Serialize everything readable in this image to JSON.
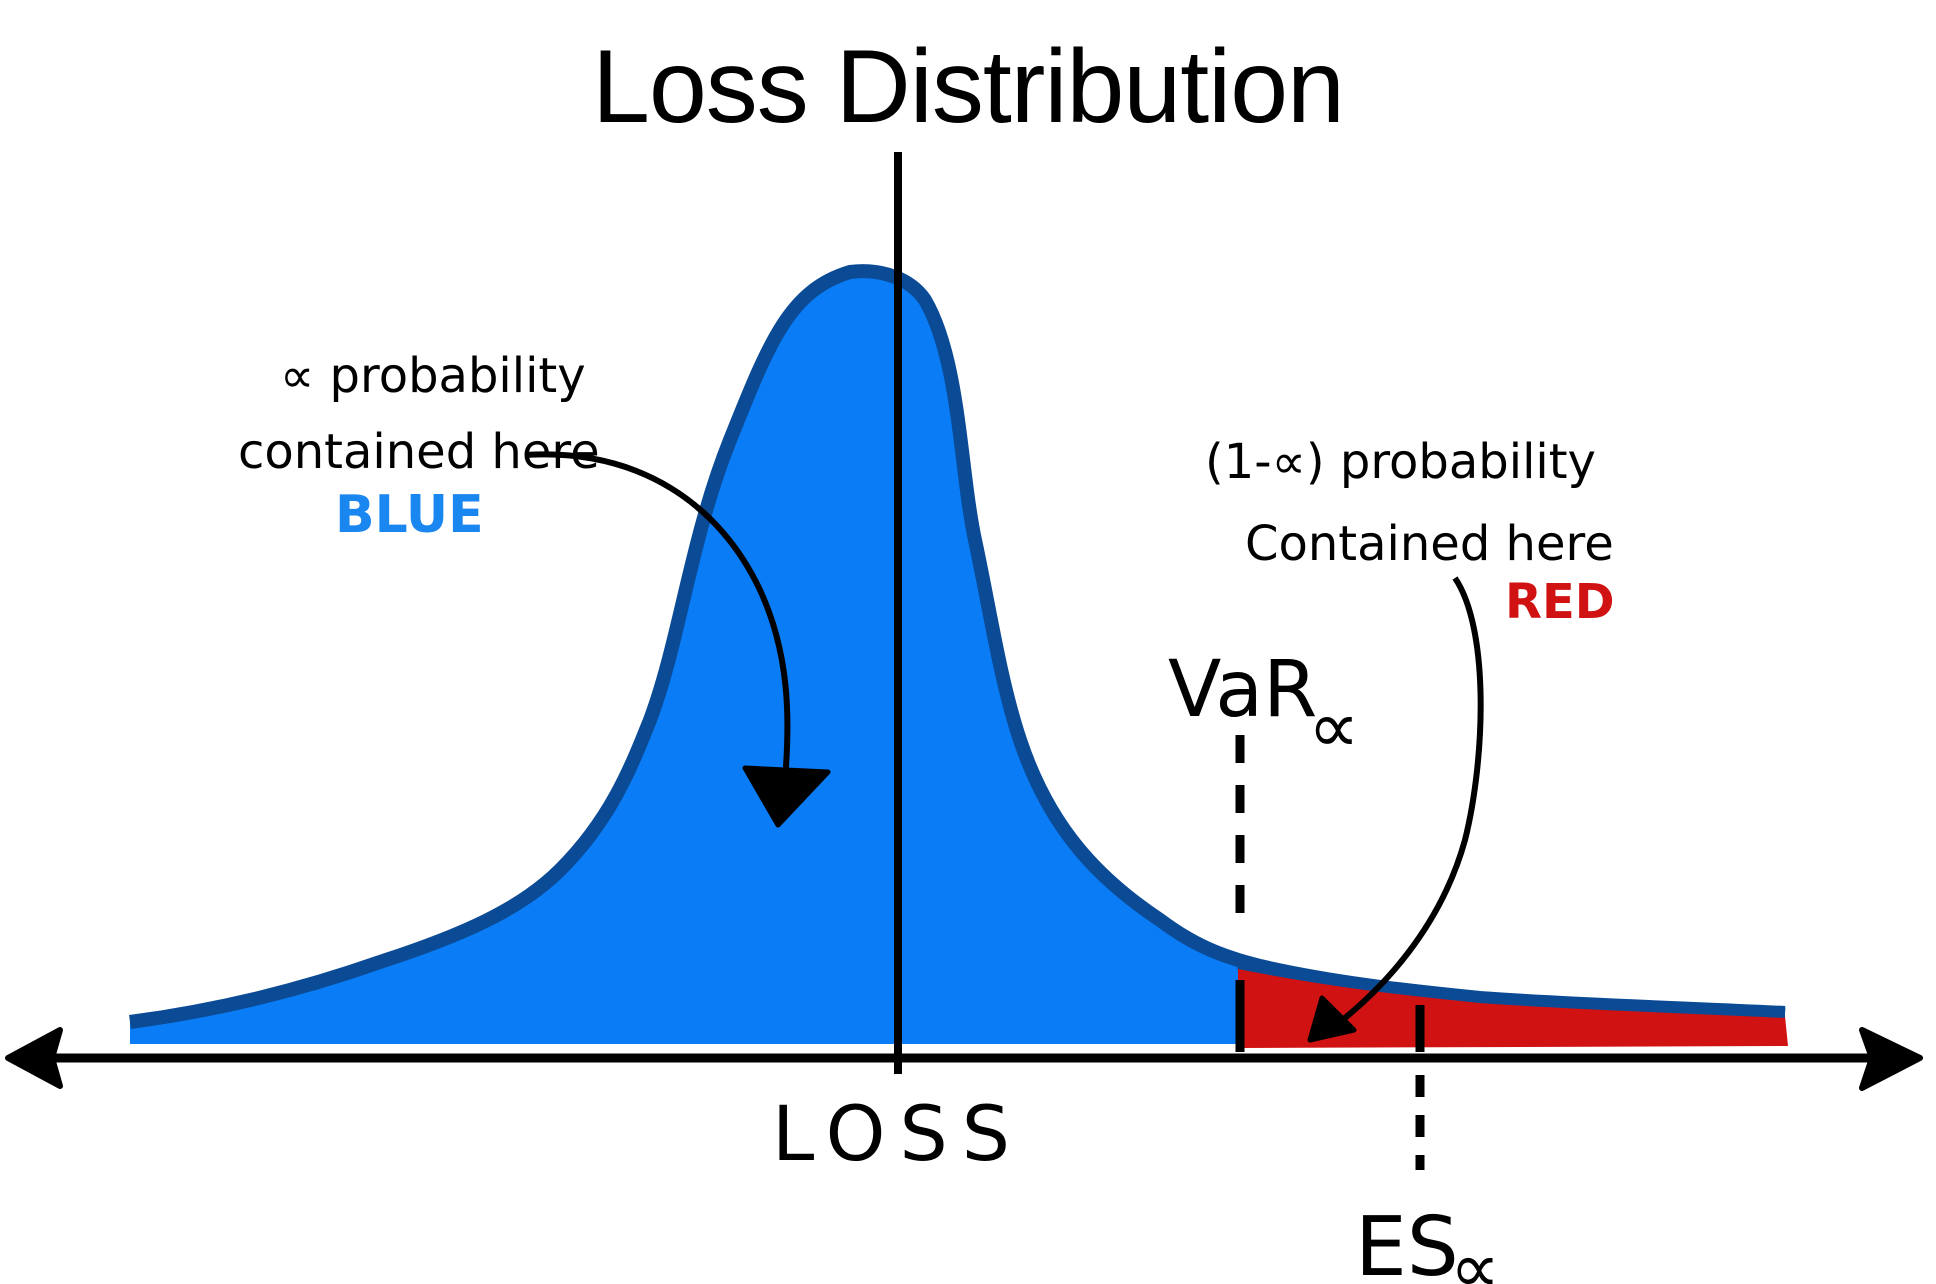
{
  "title": "Loss Distribution",
  "axis": {
    "label": "LOSS"
  },
  "annotations": {
    "alpha": {
      "line1": "∝ probability",
      "line2": "contained here",
      "color_word": "BLUE"
    },
    "tail": {
      "line1": "(1-∝) probability",
      "line2": "Contained here",
      "color_word": "RED"
    },
    "var": {
      "main": "VaR",
      "sub": "∝"
    },
    "es": {
      "main": "ES",
      "sub": "∝"
    }
  },
  "colors": {
    "body_fill": "#0a7cf5",
    "body_outline": "#0b4a95",
    "tail_fill": "#d11212",
    "blue_word": "#1a86f0",
    "red_word": "#d11212",
    "ink": "#000000"
  }
}
